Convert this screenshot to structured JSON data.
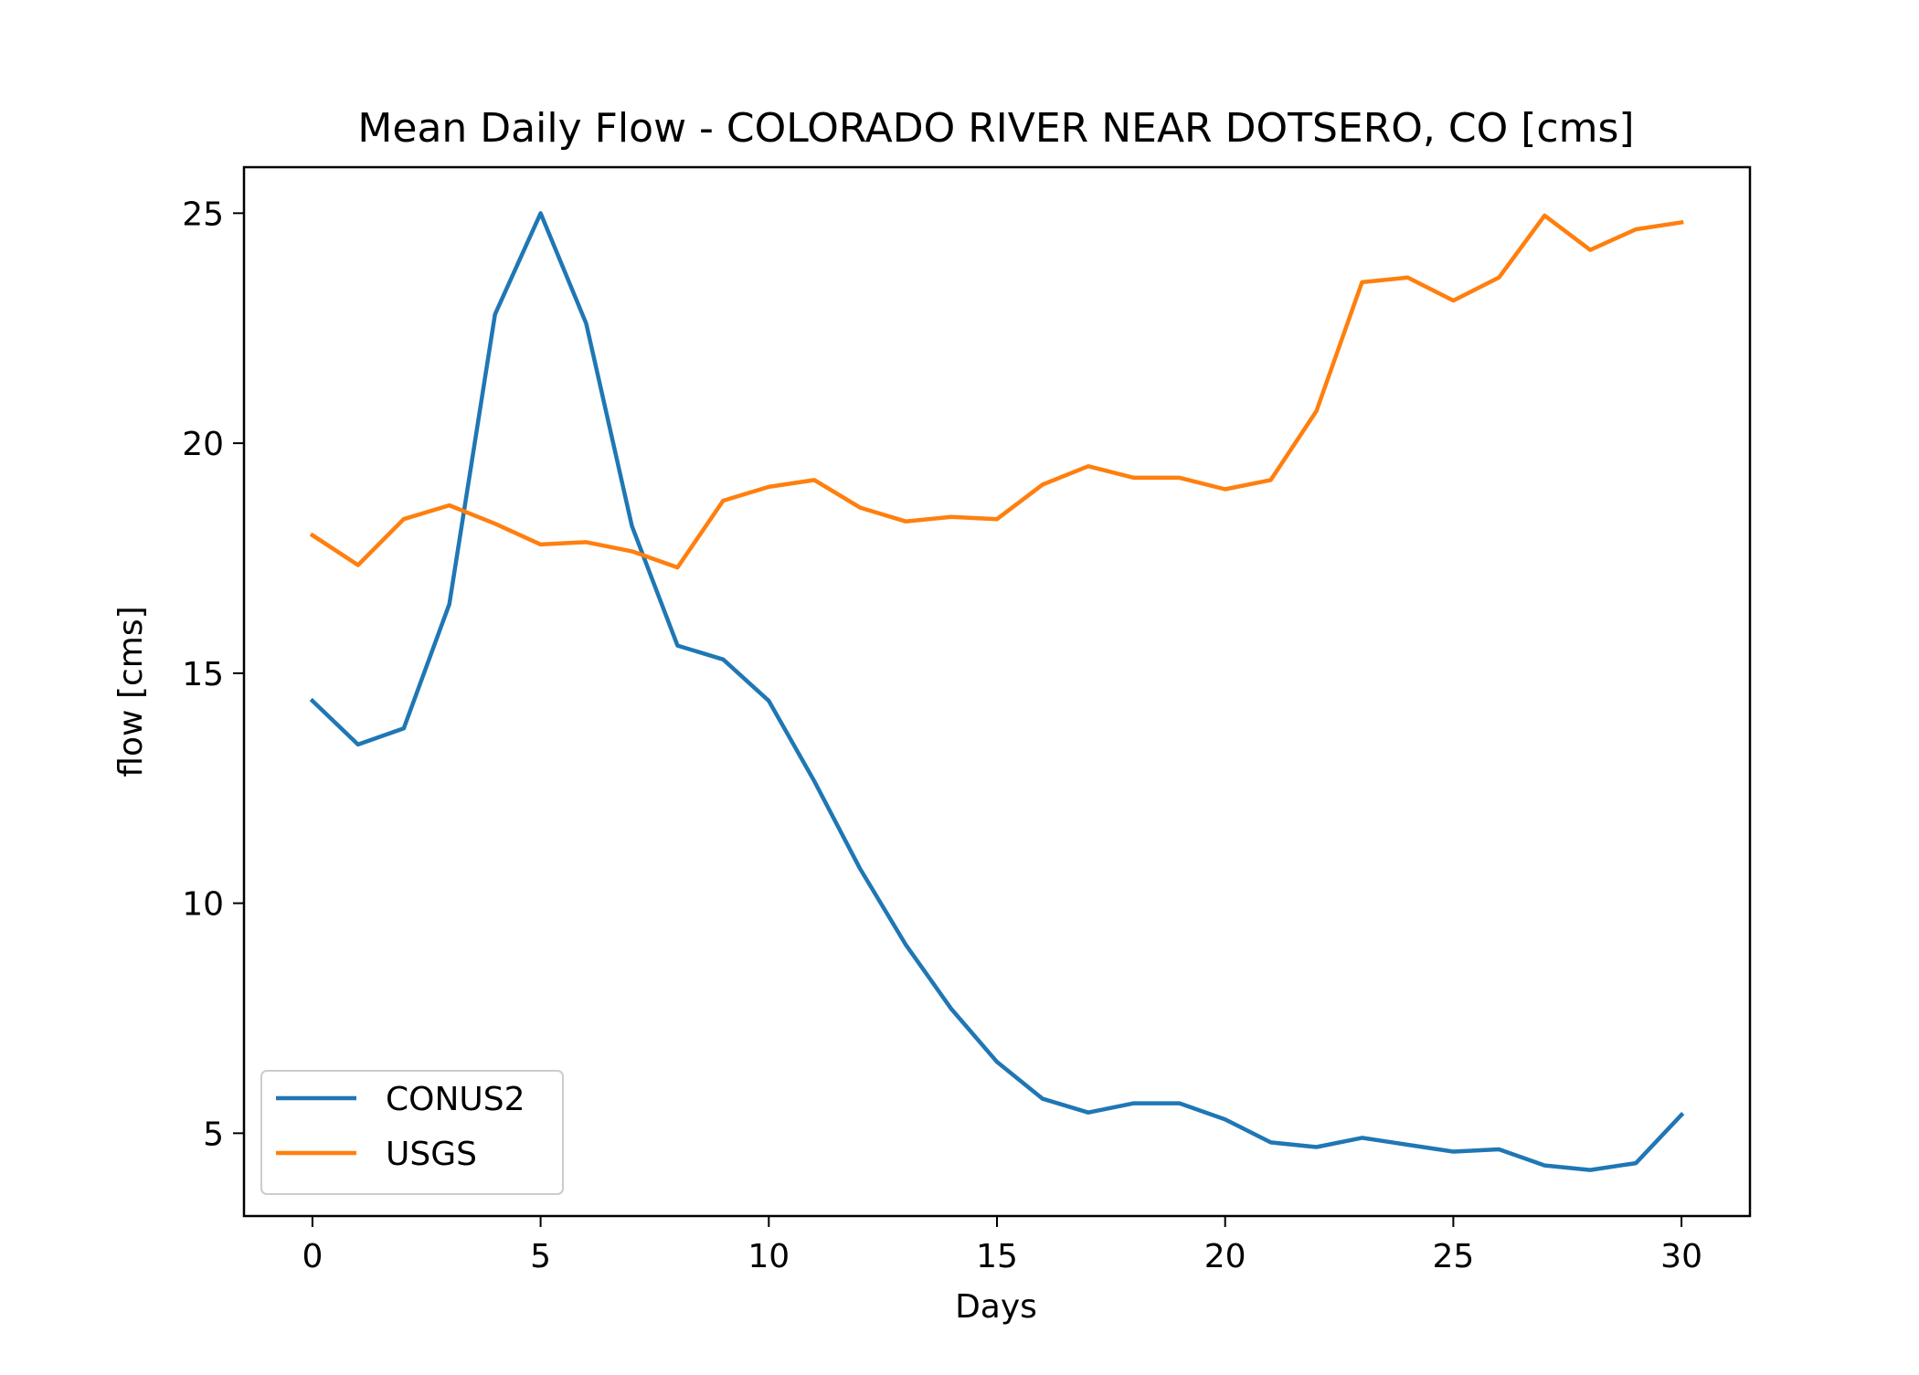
{
  "chart_data": {
    "type": "line",
    "title": "Mean Daily Flow - COLORADO RIVER NEAR DOTSERO, CO [cms]",
    "xlabel": "Days",
    "ylabel": "flow [cms]",
    "xlim": [
      -1.5,
      31.5
    ],
    "ylim": [
      3.2,
      26.0
    ],
    "xticks": [
      0,
      5,
      10,
      15,
      20,
      25,
      30
    ],
    "yticks": [
      5,
      10,
      15,
      20,
      25
    ],
    "grid": false,
    "legend_position": "lower-left",
    "x": [
      0,
      1,
      2,
      3,
      4,
      5,
      6,
      7,
      8,
      9,
      10,
      11,
      12,
      13,
      14,
      15,
      16,
      17,
      18,
      19,
      20,
      21,
      22,
      23,
      24,
      25,
      26,
      27,
      28,
      29,
      30
    ],
    "series": [
      {
        "name": "CONUS2",
        "color": "#1f77b4",
        "values": [
          14.4,
          13.45,
          13.8,
          16.5,
          22.8,
          25.0,
          22.6,
          18.2,
          15.6,
          15.3,
          14.4,
          12.65,
          10.75,
          9.1,
          7.7,
          6.55,
          5.75,
          5.45,
          5.65,
          5.65,
          5.3,
          4.8,
          4.7,
          4.9,
          4.75,
          4.6,
          4.65,
          4.3,
          4.2,
          4.35,
          5.4
        ]
      },
      {
        "name": "USGS",
        "color": "#ff7f0e",
        "values": [
          18.0,
          17.35,
          18.35,
          18.65,
          18.25,
          17.8,
          17.85,
          17.65,
          17.3,
          18.75,
          19.05,
          19.2,
          18.6,
          18.3,
          18.4,
          18.35,
          19.1,
          19.5,
          19.25,
          19.25,
          19.0,
          19.2,
          20.7,
          23.5,
          23.6,
          23.1,
          23.6,
          24.95,
          24.2,
          24.65,
          24.8
        ]
      }
    ]
  }
}
